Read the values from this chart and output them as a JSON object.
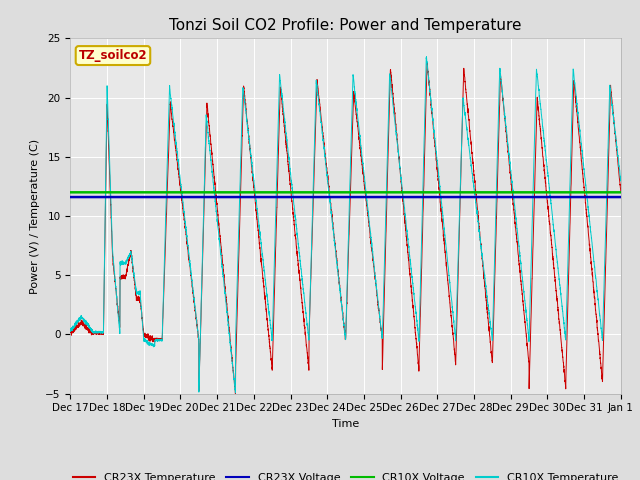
{
  "title": "Tonzi Soil CO2 Profile: Power and Temperature",
  "xlabel": "Time",
  "ylabel": "Power (V) / Temperature (C)",
  "ylim": [
    -5,
    25
  ],
  "cr23x_voltage_value": 11.6,
  "cr10x_voltage_value": 12.0,
  "cr23x_voltage_color": "#0000bb",
  "cr10x_voltage_color": "#00bb00",
  "cr23x_temp_color": "#cc0000",
  "cr10x_temp_color": "#00cccc",
  "fig_bg_color": "#dddddd",
  "plot_bg_color": "#e8e8e8",
  "inner_bg_color": "#d0d0d0",
  "label_box_color": "#ffffcc",
  "label_box_edge": "#ccaa00",
  "label_text": "TZ_soilco2",
  "title_fontsize": 11,
  "axis_fontsize": 8,
  "tick_fontsize": 7.5,
  "legend_fontsize": 8,
  "x_tick_labels": [
    "Dec 17",
    "Dec 18",
    "Dec 19",
    "Dec 20",
    "Dec 21",
    "Dec 22",
    "Dec 23",
    "Dec 24",
    "Dec 25",
    "Dec 26",
    "Dec 27",
    "Dec 28",
    "Dec 29",
    "Dec 30",
    "Dec 31",
    "Jan 1"
  ],
  "yticks": [
    -5,
    0,
    5,
    10,
    15,
    20,
    25
  ]
}
